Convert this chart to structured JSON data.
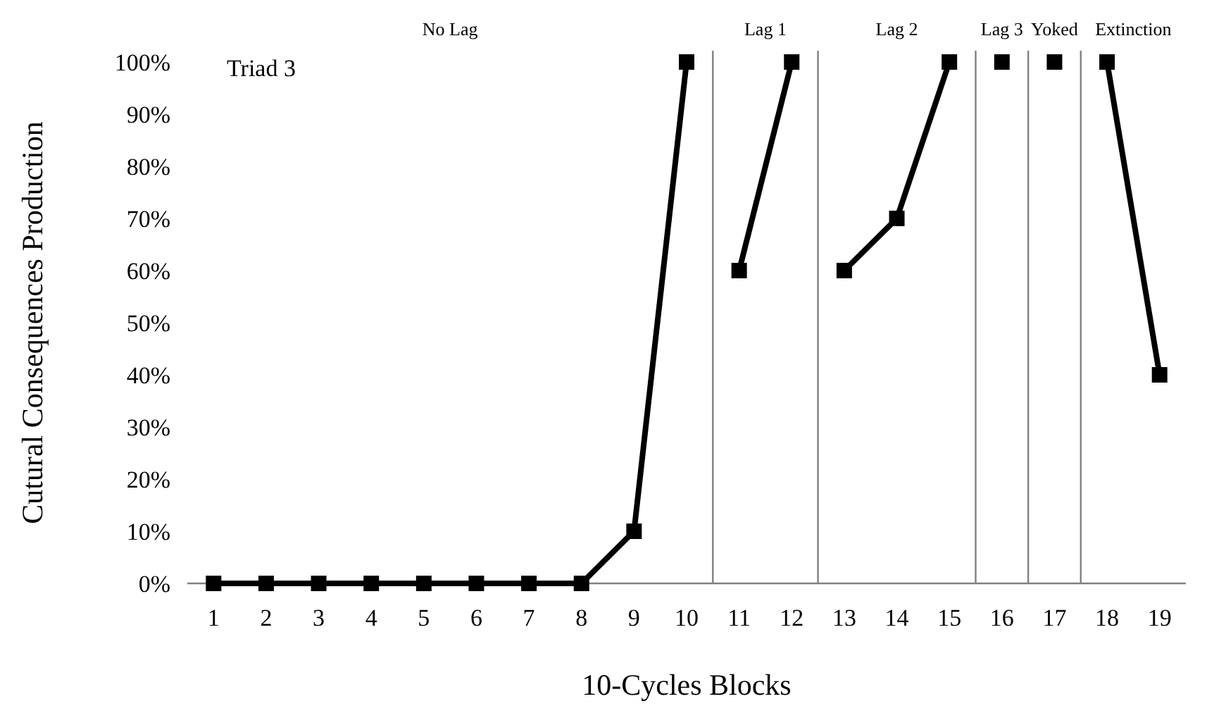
{
  "chart_data": {
    "type": "line",
    "title": "Triad 3",
    "xlabel": "10-Cycles Blocks",
    "ylabel": "Cutural Consequences Production",
    "x": [
      1,
      2,
      3,
      4,
      5,
      6,
      7,
      8,
      9,
      10,
      11,
      12,
      13,
      14,
      15,
      16,
      17,
      18,
      19
    ],
    "xlim": [
      0.5,
      19.5
    ],
    "xticks": [
      1,
      2,
      3,
      4,
      5,
      6,
      7,
      8,
      9,
      10,
      11,
      12,
      13,
      14,
      15,
      16,
      17,
      18,
      19
    ],
    "ylim": [
      0,
      100
    ],
    "yticks": [
      {
        "value": 0,
        "label": "0%"
      },
      {
        "value": 10,
        "label": "10%"
      },
      {
        "value": 20,
        "label": "20%"
      },
      {
        "value": 30,
        "label": "30%"
      },
      {
        "value": 40,
        "label": "40%"
      },
      {
        "value": 50,
        "label": "50%"
      },
      {
        "value": 60,
        "label": "60%"
      },
      {
        "value": 70,
        "label": "70%"
      },
      {
        "value": 80,
        "label": "80%"
      },
      {
        "value": 90,
        "label": "90%"
      },
      {
        "value": 100,
        "label": "100%"
      }
    ],
    "series": [
      {
        "color": "#000000",
        "values": [
          0,
          0,
          0,
          0,
          0,
          0,
          0,
          0,
          10,
          100,
          null,
          null,
          null,
          null,
          null,
          null,
          null,
          null,
          null
        ]
      },
      {
        "color": "#000000",
        "values": [
          null,
          null,
          null,
          null,
          null,
          null,
          null,
          null,
          null,
          null,
          60,
          100,
          null,
          null,
          null,
          null,
          null,
          null,
          null
        ]
      },
      {
        "color": "#000000",
        "values": [
          null,
          null,
          null,
          null,
          null,
          null,
          null,
          null,
          null,
          null,
          null,
          null,
          60,
          70,
          100,
          null,
          null,
          null,
          null
        ]
      },
      {
        "color": "#000000",
        "values": [
          null,
          null,
          null,
          null,
          null,
          null,
          null,
          null,
          null,
          null,
          null,
          null,
          null,
          null,
          null,
          100,
          null,
          null,
          null
        ]
      },
      {
        "color": "#000000",
        "values": [
          null,
          null,
          null,
          null,
          null,
          null,
          null,
          null,
          null,
          null,
          null,
          null,
          null,
          null,
          null,
          null,
          100,
          null,
          null
        ]
      },
      {
        "color": "#000000",
        "values": [
          null,
          null,
          null,
          null,
          null,
          null,
          null,
          null,
          null,
          null,
          null,
          null,
          null,
          null,
          null,
          null,
          null,
          100,
          40
        ]
      }
    ],
    "ref_lines": [
      {
        "axis": "x",
        "value": 10.5,
        "color": "#808080"
      },
      {
        "axis": "x",
        "value": 12.5,
        "color": "#808080"
      },
      {
        "axis": "x",
        "value": 15.5,
        "color": "#808080"
      },
      {
        "axis": "x",
        "value": 16.5,
        "color": "#808080"
      },
      {
        "axis": "x",
        "value": 17.5,
        "color": "#808080"
      }
    ],
    "annotations": [
      "No Lag",
      "Lag 1",
      "Lag 2",
      "Lag 3",
      "Yoked",
      "Extinction"
    ],
    "marker": "square",
    "line_style": "solid"
  }
}
